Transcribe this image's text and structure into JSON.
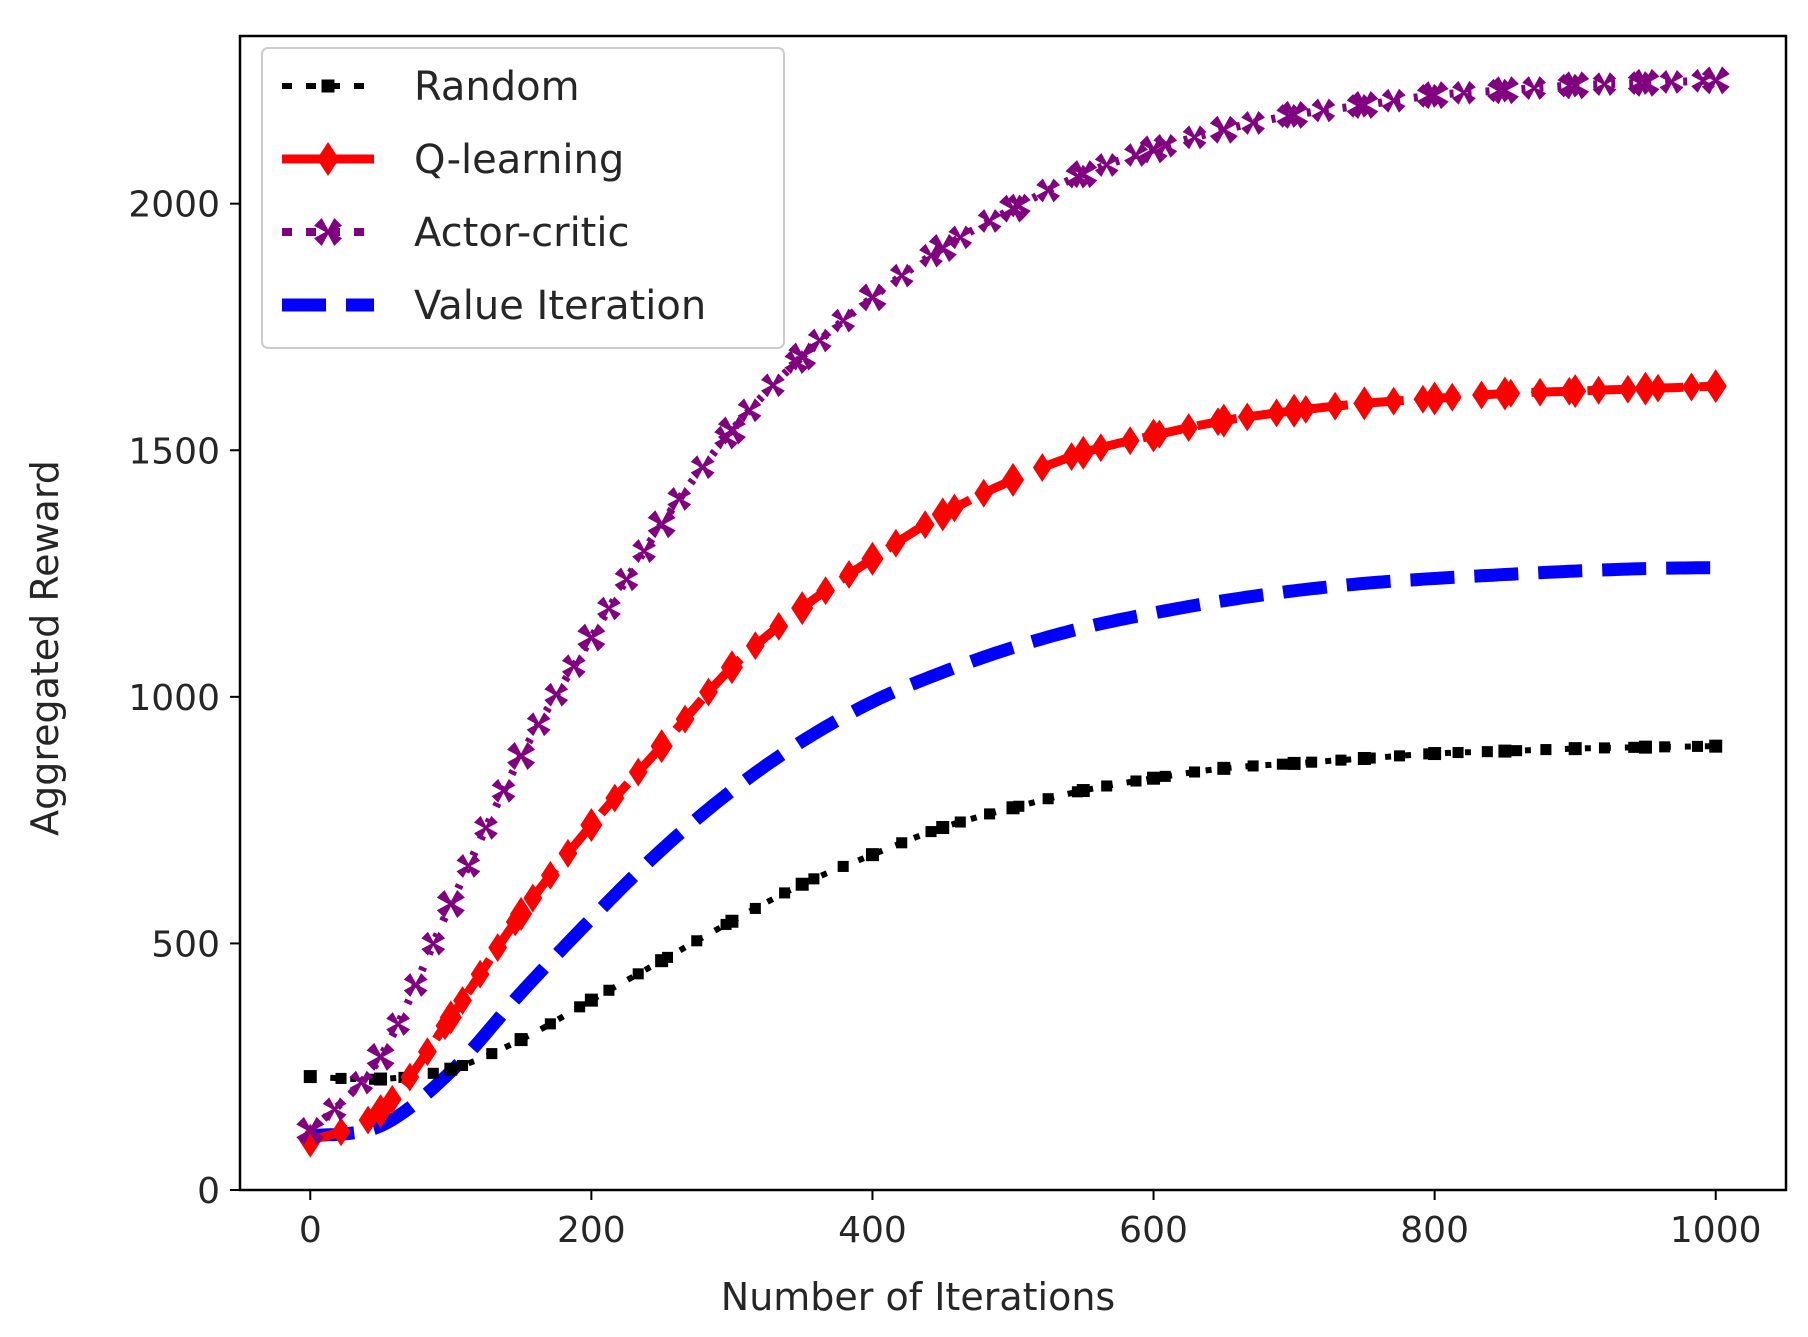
{
  "chart_data": {
    "type": "line",
    "title": "",
    "xlabel": "Number of Iterations",
    "ylabel": "Aggregated Reward",
    "xlim": [
      -50,
      1050
    ],
    "ylim": [
      0,
      2340
    ],
    "x_ticks": [
      0,
      200,
      400,
      600,
      800,
      1000
    ],
    "y_ticks": [
      0,
      500,
      1000,
      1500,
      2000
    ],
    "x_tick_labels": [
      "0",
      "200",
      "400",
      "600",
      "800",
      "1000"
    ],
    "y_tick_labels": [
      "0",
      "500",
      "1000",
      "1500",
      "2000"
    ],
    "grid": false,
    "legend_position": "top-left",
    "x": [
      0,
      50,
      100,
      150,
      200,
      250,
      300,
      350,
      400,
      450,
      500,
      550,
      600,
      650,
      700,
      750,
      800,
      850,
      900,
      950,
      1000
    ],
    "series": [
      {
        "name": "Random",
        "color": "#000000",
        "style": "dotted-marker",
        "values": [
          230,
          225,
          245,
          305,
          385,
          465,
          545,
          620,
          680,
          735,
          775,
          810,
          835,
          855,
          865,
          875,
          885,
          890,
          895,
          898,
          900
        ]
      },
      {
        "name": "Q-learning",
        "color": "#ff0000",
        "style": "dash-diamond",
        "values": [
          100,
          160,
          350,
          560,
          740,
          900,
          1060,
          1180,
          1280,
          1370,
          1440,
          1495,
          1530,
          1560,
          1580,
          1595,
          1605,
          1615,
          1620,
          1625,
          1630
        ]
      },
      {
        "name": "Actor-critic",
        "color": "#800080",
        "style": "dotted-cross",
        "values": [
          120,
          270,
          580,
          880,
          1120,
          1350,
          1540,
          1690,
          1810,
          1910,
          1990,
          2060,
          2110,
          2150,
          2180,
          2200,
          2220,
          2230,
          2240,
          2245,
          2250
        ]
      },
      {
        "name": "Value Iteration",
        "color": "#0000ff",
        "style": "dashed",
        "values": [
          110,
          130,
          240,
          400,
          550,
          690,
          810,
          910,
          990,
          1050,
          1100,
          1140,
          1170,
          1195,
          1215,
          1230,
          1240,
          1248,
          1255,
          1260,
          1262
        ]
      }
    ]
  }
}
